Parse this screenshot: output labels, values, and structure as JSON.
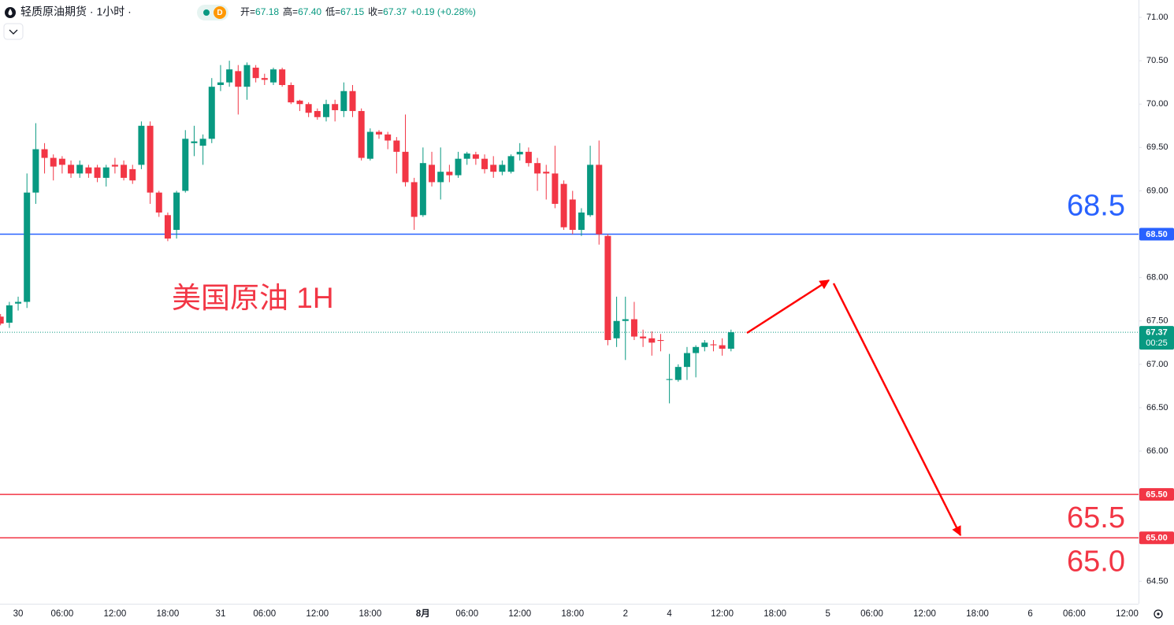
{
  "header": {
    "title": "轻质原油期货 · 1小时 ·",
    "badge": "D",
    "ohlc": [
      {
        "label": "开=",
        "value": "67.18"
      },
      {
        "label": "高=",
        "value": "67.40"
      },
      {
        "label": "低=",
        "value": "67.15"
      },
      {
        "label": "收=",
        "value": "67.37"
      }
    ],
    "change": "+0.19 (+0.28%)"
  },
  "chart_data": {
    "type": "candlestick",
    "annotation": "美国原油 1H",
    "up_color": "#089981",
    "down_color": "#f23645",
    "ylim": [
      64.24,
      71.2
    ],
    "yticks": [
      {
        "value": 71,
        "label": "71.00"
      },
      {
        "value": 70.5,
        "label": "70.50"
      },
      {
        "value": 70,
        "label": "70.00"
      },
      {
        "value": 69.5,
        "label": "69.50"
      },
      {
        "value": 69,
        "label": "69.00"
      },
      {
        "value": 68.5,
        "label": "68.50"
      },
      {
        "value": 68,
        "label": "68.00"
      },
      {
        "value": 67.5,
        "label": "67.50"
      },
      {
        "value": 67,
        "label": "67.00"
      },
      {
        "value": 66.5,
        "label": "66.50"
      },
      {
        "value": 66,
        "label": "66.00"
      },
      {
        "value": 65.5,
        "label": "65.50"
      },
      {
        "value": 65,
        "label": "65.00"
      },
      {
        "value": 64.5,
        "label": "64.50"
      }
    ],
    "hlines": [
      {
        "value": 68.5,
        "tag": "68.50",
        "text": "68.5",
        "color": "#2962ff"
      },
      {
        "value": 65.5,
        "tag": "65.50",
        "text": "65.5",
        "color": "#f23645"
      },
      {
        "value": 65,
        "tag": "65.00",
        "text": "65.0",
        "color": "#f23645"
      }
    ],
    "last": {
      "value": 67.37,
      "tag": "67.37",
      "countdown": "00:25"
    },
    "categories": [
      null,
      null,
      "30",
      null,
      null,
      null,
      null,
      "06:00",
      null,
      null,
      null,
      null,
      null,
      "12:00",
      null,
      null,
      null,
      null,
      null,
      "18:00",
      null,
      null,
      null,
      null,
      null,
      "31",
      null,
      null,
      null,
      null,
      "06:00",
      null,
      null,
      null,
      null,
      null,
      "12:00",
      null,
      null,
      null,
      null,
      null,
      "18:00",
      null,
      null,
      null,
      null,
      null,
      "8月",
      null,
      null,
      null,
      null,
      "06:00",
      null,
      null,
      null,
      null,
      null,
      "12:00",
      null,
      null,
      null,
      null,
      null,
      "18:00",
      null,
      null,
      null,
      null,
      null,
      "2",
      null,
      null,
      null,
      null,
      "4",
      null,
      null,
      null,
      null,
      null,
      "12:00",
      null,
      null,
      null,
      null,
      null,
      "18:00",
      null,
      null,
      null,
      null,
      null,
      "5",
      null,
      null,
      null,
      null,
      "06:00",
      null,
      null,
      null,
      null,
      null,
      "12:00",
      null,
      null,
      null,
      null,
      null,
      "18:00",
      null,
      null,
      null,
      null,
      null,
      "6",
      null,
      null,
      null,
      null,
      "06:00",
      null,
      null,
      null,
      null,
      null,
      "12:00",
      null
    ],
    "open": [
      67.55,
      67.48,
      67.7,
      67.72,
      68.98,
      69.48,
      69.38,
      69.37,
      69.3,
      69.2,
      69.27,
      69.27,
      69.15,
      69.3,
      69.3,
      69.25,
      69.3,
      69.75,
      68.98,
      68.72,
      68.55,
      69.0,
      69.55,
      69.52,
      69.6,
      70.22,
      70.25,
      70.38,
      70.2,
      70.42,
      70.3,
      70.25,
      70.4,
      70.22,
      70.04,
      70.0,
      69.92,
      69.85,
      70.0,
      69.92,
      70.15,
      69.92,
      69.37,
      69.68,
      69.65,
      69.58,
      69.45,
      69.1,
      68.72,
      69.3,
      69.1,
      69.22,
      69.18,
      69.37,
      69.42,
      69.37,
      69.3,
      69.22,
      69.22,
      69.42,
      69.45,
      69.32,
      69.22,
      69.2,
      69.08,
      68.9,
      68.55,
      68.72,
      69.3,
      68.48,
      67.3,
      67.5,
      67.52,
      67.32,
      67.3,
      67.28,
      66.82,
      66.82,
      66.97,
      67.13,
      67.2,
      67.23,
      67.22,
      67.18,
      null,
      null,
      null,
      null,
      null,
      null,
      null,
      null,
      null,
      null,
      null,
      null,
      null,
      null,
      null,
      null,
      null,
      null,
      null,
      null,
      null,
      null,
      null,
      null,
      null,
      null,
      null,
      null,
      null,
      null,
      null,
      null,
      null,
      null,
      null,
      null,
      null,
      null,
      null,
      null,
      null,
      null,
      null,
      null,
      null,
      null
    ],
    "high": [
      67.58,
      67.72,
      67.78,
      69.2,
      69.78,
      69.55,
      69.42,
      69.4,
      69.35,
      69.35,
      69.3,
      69.3,
      69.3,
      69.38,
      69.35,
      69.3,
      69.8,
      69.8,
      69.0,
      68.75,
      69.0,
      69.7,
      69.75,
      69.65,
      70.3,
      70.45,
      70.5,
      70.45,
      70.48,
      70.45,
      70.35,
      70.42,
      70.42,
      70.25,
      70.05,
      70.02,
      69.95,
      70.05,
      70.05,
      70.25,
      70.22,
      69.95,
      69.72,
      69.7,
      69.68,
      69.62,
      69.88,
      69.15,
      69.5,
      69.45,
      69.5,
      69.3,
      69.45,
      69.45,
      69.45,
      69.42,
      69.4,
      69.35,
      69.42,
      69.55,
      69.5,
      69.38,
      69.3,
      69.52,
      69.12,
      69.0,
      68.8,
      69.52,
      69.58,
      68.5,
      67.78,
      67.78,
      67.72,
      67.4,
      67.38,
      67.35,
      67.12,
      67.0,
      67.2,
      67.22,
      67.28,
      67.28,
      67.3,
      67.4,
      null,
      null,
      null,
      null,
      null,
      null,
      null,
      null,
      null,
      null,
      null,
      null,
      null,
      null,
      null,
      null,
      null,
      null,
      null,
      null,
      null,
      null,
      null,
      null,
      null,
      null,
      null,
      null,
      null,
      null,
      null,
      null,
      null,
      null,
      null,
      null,
      null,
      null,
      null,
      null,
      null,
      null,
      null,
      null,
      null,
      null
    ],
    "low": [
      67.45,
      67.42,
      67.62,
      67.65,
      68.85,
      69.2,
      69.12,
      69.2,
      69.15,
      69.15,
      69.15,
      69.1,
      69.05,
      69.2,
      69.12,
      69.08,
      69.25,
      68.85,
      68.7,
      68.42,
      68.45,
      68.98,
      69.4,
      69.3,
      69.55,
      70.15,
      70.2,
      69.88,
      70.05,
      70.25,
      70.22,
      70.22,
      70.2,
      70.0,
      69.92,
      69.85,
      69.82,
      69.8,
      69.8,
      69.85,
      69.85,
      69.35,
      69.35,
      69.6,
      69.48,
      69.2,
      69.05,
      68.55,
      68.7,
      69.05,
      68.9,
      69.1,
      69.15,
      69.3,
      69.3,
      69.2,
      69.15,
      69.18,
      69.2,
      69.35,
      69.28,
      69.0,
      68.9,
      68.8,
      68.55,
      68.5,
      68.48,
      68.7,
      68.38,
      67.22,
      67.2,
      67.05,
      67.28,
      67.2,
      67.1,
      67.15,
      66.55,
      66.8,
      66.82,
      66.85,
      67.15,
      67.15,
      67.1,
      67.15,
      null,
      null,
      null,
      null,
      null,
      null,
      null,
      null,
      null,
      null,
      null,
      null,
      null,
      null,
      null,
      null,
      null,
      null,
      null,
      null,
      null,
      null,
      null,
      null,
      null,
      null,
      null,
      null,
      null,
      null,
      null,
      null,
      null,
      null,
      null,
      null,
      null,
      null,
      null,
      null,
      null,
      null,
      null,
      null,
      null,
      null
    ],
    "close": [
      67.47,
      67.68,
      67.72,
      68.98,
      69.48,
      69.38,
      69.28,
      69.3,
      69.2,
      69.3,
      69.2,
      69.15,
      69.27,
      69.28,
      69.15,
      69.12,
      69.75,
      68.98,
      68.75,
      68.45,
      68.98,
      69.6,
      69.57,
      69.6,
      70.2,
      70.25,
      70.4,
      70.2,
      70.45,
      70.3,
      70.28,
      70.4,
      70.22,
      70.02,
      70.0,
      69.9,
      69.85,
      70.0,
      69.93,
      70.15,
      69.92,
      69.38,
      69.68,
      69.65,
      69.58,
      69.45,
      69.1,
      68.7,
      69.32,
      69.1,
      69.22,
      69.18,
      69.37,
      69.43,
      69.37,
      69.25,
      69.22,
      69.3,
      69.4,
      69.45,
      69.32,
      69.2,
      69.2,
      68.85,
      68.58,
      68.55,
      68.75,
      69.3,
      68.5,
      67.28,
      67.5,
      67.52,
      67.32,
      67.3,
      67.25,
      67.27,
      66.83,
      66.97,
      67.13,
      67.2,
      67.25,
      67.22,
      67.18,
      67.37,
      null,
      null,
      null,
      null,
      null,
      null,
      null,
      null,
      null,
      null,
      null,
      null,
      null,
      null,
      null,
      null,
      null,
      null,
      null,
      null,
      null,
      null,
      null,
      null,
      null,
      null,
      null,
      null,
      null,
      null,
      null,
      null,
      null,
      null,
      null,
      null,
      null,
      null,
      null,
      null,
      null,
      null,
      null,
      null,
      null,
      null
    ]
  }
}
